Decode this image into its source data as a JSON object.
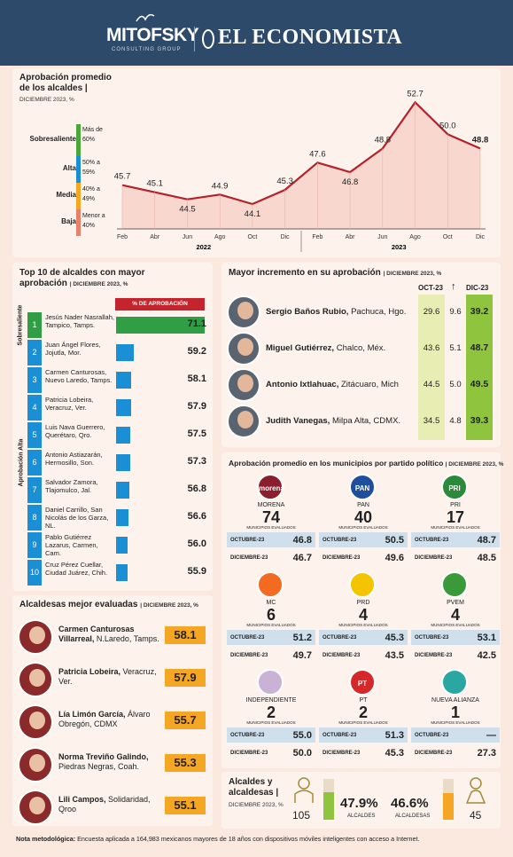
{
  "header": {
    "brand1": "MITOFSKY",
    "brand1_sub": "CONSULTING GROUP",
    "brand2": "EL ECONOMISTA"
  },
  "approval": {
    "title1": "Aprobación promedio",
    "title2": "de los alcaldes",
    "subtitle": "DICIEMBRE 2023, %"
  },
  "legend": [
    {
      "label": "Sobresaliente",
      "range": "Más de 60%",
      "color": "#4aa83a"
    },
    {
      "label": "Alta",
      "range": "50% a 59%",
      "color": "#1a8fd6"
    },
    {
      "label": "Media",
      "range": "40% a 49%",
      "color": "#f5a623"
    },
    {
      "label": "Baja",
      "range": "Menor a 40%",
      "color": "#e8806a"
    }
  ],
  "chart_data": {
    "type": "area",
    "x": [
      "Feb",
      "Abr",
      "Jun",
      "Ago",
      "Oct",
      "Dic",
      "Feb",
      "Abr",
      "Jun",
      "Ago",
      "Oct",
      "Dic"
    ],
    "values": [
      45.7,
      45.1,
      44.5,
      44.9,
      44.1,
      45.3,
      47.6,
      46.8,
      48.8,
      52.7,
      50.0,
      48.8
    ],
    "value_labels": [
      "45.7",
      "45.1",
      "44.5",
      "44.9",
      "44.1",
      "45.3",
      "47.6",
      "46.8",
      "48.8",
      "52.7",
      "50.0",
      "48.8"
    ],
    "years": [
      "2022",
      "2023"
    ],
    "line_color": "#b5202a",
    "ylim": [
      42,
      54
    ]
  },
  "top10": {
    "title1": "Top 10 de alcaldes con mayor",
    "title2": "aprobación",
    "subtitle": "DICIEMBRE 2023, %",
    "bar_header": "% DE APROBACIÓN",
    "group_sob": "Sobresaliente",
    "group_alta": "Aprobación Alta",
    "max": 71.1,
    "items": [
      {
        "n": "1",
        "name": "Jesús Nader Nasrallah,",
        "place": "Tampico, Tamps.",
        "value": 71.1,
        "label": "71.1",
        "color": "#2f9e44"
      },
      {
        "n": "2",
        "name": "Juan Ángel Flores,",
        "place": "Jojutla, Mor.",
        "value": 59.2,
        "label": "59.2",
        "color": "#1a8fd6"
      },
      {
        "n": "3",
        "name": "Carmen Canturosas,",
        "place": "Nuevo Laredo, Tamps.",
        "value": 58.1,
        "label": "58.1",
        "color": "#1a8fd6"
      },
      {
        "n": "4",
        "name": "Patricia Lobeira,",
        "place": "Veracruz, Ver.",
        "value": 57.9,
        "label": "57.9",
        "color": "#1a8fd6"
      },
      {
        "n": "5",
        "name": "Luis Nava Guerrero,",
        "place": "Querétaro, Qro.",
        "value": 57.5,
        "label": "57.5",
        "color": "#1a8fd6"
      },
      {
        "n": "6",
        "name": "Antonio Astiazarán,",
        "place": "Hermosillo, Son.",
        "value": 57.3,
        "label": "57.3",
        "color": "#1a8fd6"
      },
      {
        "n": "7",
        "name": "Salvador Zamora,",
        "place": "Tlajomulco, Jal.",
        "value": 56.8,
        "label": "56.8",
        "color": "#1a8fd6"
      },
      {
        "n": "8",
        "name": "Daniel Carrillo,",
        "place": "San Nicolás de los Garza, NL.",
        "value": 56.6,
        "label": "56.6",
        "color": "#1a8fd6"
      },
      {
        "n": "9",
        "name": "Pablo Gutiérrez Lazarus,",
        "place": "Carmen, Cam.",
        "value": 56.0,
        "label": "56.0",
        "color": "#1a8fd6"
      },
      {
        "n": "10",
        "name": "Cruz Pérez Cuellar,",
        "place": "Ciudad Juárez, Chih.",
        "value": 55.9,
        "label": "55.9",
        "color": "#1a8fd6"
      }
    ]
  },
  "alcaldesas": {
    "title": "Alcaldesas mejor evaluadas",
    "subtitle": "DICIEMBRE 2023, %",
    "items": [
      {
        "name": "Carmen Canturosas Villarreal,",
        "place": "N.Laredo, Tamps.",
        "value": "58.1"
      },
      {
        "name": "Patricia Lobeira,",
        "place": "Veracruz, Ver.",
        "value": "57.9"
      },
      {
        "name": "Lía Limón García,",
        "place": "Álvaro Obregón, CDMX",
        "value": "55.7"
      },
      {
        "name": "Norma Treviño Galindo,",
        "place": "Piedras Negras, Coah.",
        "value": "55.3"
      },
      {
        "name": "Lili Campos,",
        "place": "Solidaridad, Qroo",
        "value": "55.1"
      }
    ]
  },
  "incremento": {
    "title": "Mayor incremento en su aprobación",
    "subtitle": "DICIEMBRE 2023, %",
    "col1": "OCT-23",
    "col3": "DIC-23",
    "items": [
      {
        "name": "Sergio Baños Rubio,",
        "place": "Pachuca, Hgo.",
        "oct": "29.6",
        "inc": "9.6",
        "dic": "39.2"
      },
      {
        "name": "Miguel Gutiérrez,",
        "place": "Chalco, Méx.",
        "oct": "43.6",
        "inc": "5.1",
        "dic": "48.7"
      },
      {
        "name": "Antonio Ixtlahuac,",
        "place": "Zitácuaro, Mich",
        "oct": "44.5",
        "inc": "5.0",
        "dic": "49.5"
      },
      {
        "name": "Judith Vanegas,",
        "place": "Milpa Alta, CDMX.",
        "oct": "34.5",
        "inc": "4.8",
        "dic": "39.3"
      }
    ]
  },
  "partidos": {
    "title": "Aprobación promedio en los municipios por partido político",
    "subtitle": "DICIEMBRE 2023, %",
    "mun_label": "MUNICIPIOS EVALUADOS",
    "oct_label": "OCTUBRE-23",
    "dic_label": "DICIEMBRE-23",
    "items": [
      {
        "name": "MORENA",
        "logo": "morena",
        "count": "74",
        "oct": "46.8",
        "dic": "46.7"
      },
      {
        "name": "PAN",
        "logo": "PAN",
        "count": "40",
        "oct": "50.5",
        "dic": "49.6"
      },
      {
        "name": "PRI",
        "logo": "PRI",
        "count": "17",
        "oct": "48.7",
        "dic": "48.5"
      },
      {
        "name": "MC",
        "logo": "",
        "count": "6",
        "oct": "51.2",
        "dic": "49.7"
      },
      {
        "name": "PRD",
        "logo": "",
        "count": "4",
        "oct": "45.3",
        "dic": "43.5"
      },
      {
        "name": "PVEM",
        "logo": "",
        "count": "4",
        "oct": "53.1",
        "dic": "42.5"
      },
      {
        "name": "INDEPENDIENTE",
        "logo": "",
        "count": "2",
        "oct": "55.0",
        "dic": "50.0"
      },
      {
        "name": "PT",
        "logo": "PT",
        "count": "2",
        "oct": "51.3",
        "dic": "45.3"
      },
      {
        "name": "NUEVA ALIANZA",
        "logo": "",
        "count": "1",
        "oct": "—",
        "dic": "27.3"
      }
    ]
  },
  "alc_sum": {
    "title1": "Alcaldes y",
    "title2": "alcaldesas",
    "subtitle": "DICIEMBRE 2023, %",
    "men_count": "105",
    "men_pct": "47.9%",
    "men_label": "ALCALDES",
    "women_pct": "46.6%",
    "women_label": "ALCALDESAS",
    "women_count": "45",
    "men_share": 47.9,
    "women_share": 46.6
  },
  "nota": {
    "label": "Nota metodológica:",
    "text": "Encuesta aplicada a 164,983 mexicanos mayores de 18 años con dispositivos móviles inteligentes con acceso a Internet."
  }
}
